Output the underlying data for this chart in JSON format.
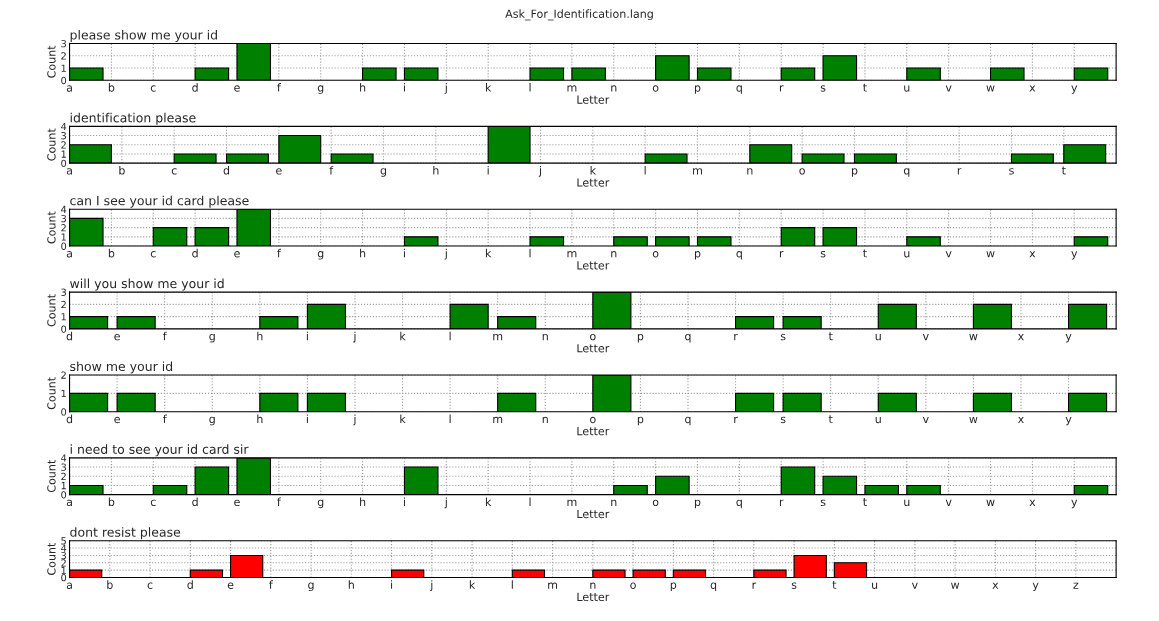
{
  "chart_data": [
    {
      "type": "bar",
      "title": "Ask_For_Identification.lang",
      "xlabel": "Letter",
      "ylabel": "Count",
      "annotations": [
        "please show me your id"
      ],
      "color": "#008000",
      "grid": true,
      "ylim": [
        0,
        3
      ],
      "yticks": [
        0,
        1,
        2,
        3
      ],
      "categories": [
        "a",
        "b",
        "c",
        "d",
        "e",
        "f",
        "g",
        "h",
        "i",
        "j",
        "k",
        "l",
        "m",
        "n",
        "o",
        "p",
        "q",
        "r",
        "s",
        "t",
        "u",
        "v",
        "w",
        "x",
        "y"
      ],
      "values": [
        1,
        0,
        0,
        1,
        3,
        0,
        0,
        1,
        1,
        0,
        0,
        1,
        1,
        0,
        2,
        1,
        0,
        1,
        2,
        0,
        1,
        0,
        1,
        0,
        1
      ]
    },
    {
      "type": "bar",
      "xlabel": "Letter",
      "ylabel": "Count",
      "annotations": [
        "identification please"
      ],
      "color": "#008000",
      "grid": true,
      "ylim": [
        0,
        4
      ],
      "yticks": [
        0,
        1,
        2,
        3,
        4
      ],
      "categories": [
        "a",
        "b",
        "c",
        "d",
        "e",
        "f",
        "g",
        "h",
        "i",
        "j",
        "k",
        "l",
        "m",
        "n",
        "o",
        "p",
        "q",
        "r",
        "s",
        "t"
      ],
      "values": [
        2,
        0,
        1,
        1,
        3,
        1,
        0,
        0,
        4,
        0,
        0,
        1,
        0,
        2,
        1,
        1,
        0,
        0,
        1,
        2
      ]
    },
    {
      "type": "bar",
      "xlabel": "Letter",
      "ylabel": "Count",
      "annotations": [
        "can I see your id card please"
      ],
      "color": "#008000",
      "grid": true,
      "ylim": [
        0,
        4
      ],
      "yticks": [
        0,
        1,
        2,
        3,
        4
      ],
      "categories": [
        "a",
        "b",
        "c",
        "d",
        "e",
        "f",
        "g",
        "h",
        "i",
        "j",
        "k",
        "l",
        "m",
        "n",
        "o",
        "p",
        "q",
        "r",
        "s",
        "t",
        "u",
        "v",
        "w",
        "x",
        "y"
      ],
      "values": [
        3,
        0,
        2,
        2,
        4,
        0,
        0,
        0,
        1,
        0,
        0,
        1,
        0,
        1,
        1,
        1,
        0,
        2,
        2,
        0,
        1,
        0,
        0,
        0,
        1
      ]
    },
    {
      "type": "bar",
      "xlabel": "Letter",
      "ylabel": "Count",
      "annotations": [
        "will you show me your id"
      ],
      "color": "#008000",
      "grid": true,
      "ylim": [
        0,
        3
      ],
      "yticks": [
        0,
        1,
        2,
        3
      ],
      "categories": [
        "d",
        "e",
        "f",
        "g",
        "h",
        "i",
        "j",
        "k",
        "l",
        "m",
        "n",
        "o",
        "p",
        "q",
        "r",
        "s",
        "t",
        "u",
        "v",
        "w",
        "x",
        "y"
      ],
      "values": [
        1,
        1,
        0,
        0,
        1,
        2,
        0,
        0,
        2,
        1,
        0,
        3,
        0,
        0,
        1,
        1,
        0,
        2,
        0,
        2,
        0,
        2
      ]
    },
    {
      "type": "bar",
      "xlabel": "Letter",
      "ylabel": "Count",
      "annotations": [
        "show me your id"
      ],
      "color": "#008000",
      "grid": true,
      "ylim": [
        0,
        2
      ],
      "yticks": [
        0,
        1,
        2
      ],
      "categories": [
        "d",
        "e",
        "f",
        "g",
        "h",
        "i",
        "j",
        "k",
        "l",
        "m",
        "n",
        "o",
        "p",
        "q",
        "r",
        "s",
        "t",
        "u",
        "v",
        "w",
        "x",
        "y"
      ],
      "values": [
        1,
        1,
        0,
        0,
        1,
        1,
        0,
        0,
        0,
        1,
        0,
        2,
        0,
        0,
        1,
        1,
        0,
        1,
        0,
        1,
        0,
        1
      ]
    },
    {
      "type": "bar",
      "xlabel": "Letter",
      "ylabel": "Count",
      "annotations": [
        "i need to see your id card sir"
      ],
      "color": "#008000",
      "grid": true,
      "ylim": [
        0,
        4
      ],
      "yticks": [
        0,
        1,
        2,
        3,
        4
      ],
      "categories": [
        "a",
        "b",
        "c",
        "d",
        "e",
        "f",
        "g",
        "h",
        "i",
        "j",
        "k",
        "l",
        "m",
        "n",
        "o",
        "p",
        "q",
        "r",
        "s",
        "t",
        "u",
        "v",
        "w",
        "x",
        "y"
      ],
      "values": [
        1,
        0,
        1,
        3,
        4,
        0,
        0,
        0,
        3,
        0,
        0,
        0,
        0,
        1,
        2,
        0,
        0,
        3,
        2,
        1,
        1,
        0,
        0,
        0,
        1
      ]
    },
    {
      "type": "bar",
      "xlabel": "Letter",
      "ylabel": "Count",
      "annotations": [
        "dont resist please"
      ],
      "color": "#ff0000",
      "grid": true,
      "ylim": [
        0,
        5
      ],
      "yticks": [
        0,
        1,
        2,
        3,
        4,
        5
      ],
      "categories": [
        "a",
        "b",
        "c",
        "d",
        "e",
        "f",
        "g",
        "h",
        "i",
        "j",
        "k",
        "l",
        "m",
        "n",
        "o",
        "p",
        "q",
        "r",
        "s",
        "t",
        "u",
        "v",
        "w",
        "x",
        "y",
        "z"
      ],
      "values": [
        1,
        0,
        0,
        1,
        3,
        0,
        0,
        0,
        1,
        0,
        0,
        1,
        0,
        1,
        1,
        1,
        0,
        1,
        3,
        2,
        0,
        0,
        0,
        0,
        0,
        0
      ]
    }
  ]
}
